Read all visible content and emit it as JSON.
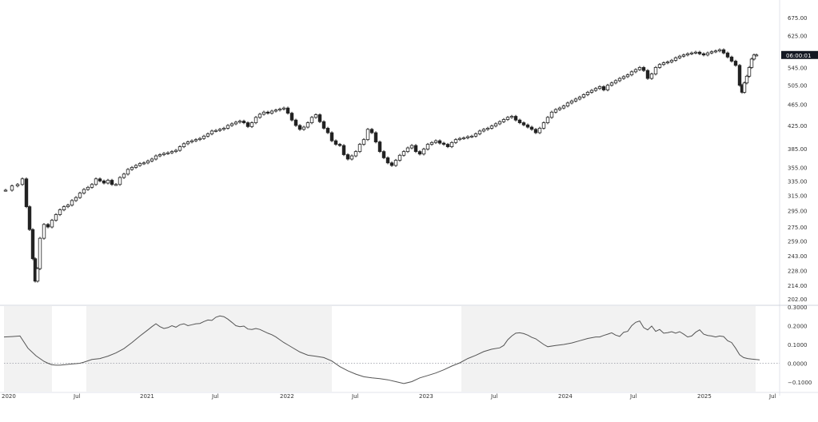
{
  "chart_data": [
    {
      "type": "candlestick",
      "title": "",
      "xlabel": "",
      "ylabel": "",
      "scale": "log",
      "ylim": [
        202,
        675
      ],
      "price_ticks": [
        "675.00",
        "625.00",
        "545.00",
        "505.00",
        "465.00",
        "425.00",
        "385.00",
        "355.00",
        "335.00",
        "315.00",
        "295.00",
        "275.00",
        "259.00",
        "243.00",
        "228.00",
        "214.00",
        "202.00"
      ],
      "last_price_marker": "06:00:01",
      "grid": false,
      "weekly_close_approx": {
        "dates": [
          "2020-01",
          "2020-02",
          "2020-03",
          "2020-04",
          "2020-05",
          "2020-06",
          "2020-07",
          "2020-08",
          "2020-09",
          "2020-10",
          "2020-11",
          "2020-12",
          "2021-01",
          "2021-02",
          "2021-03",
          "2021-04",
          "2021-05",
          "2021-06",
          "2021-07",
          "2021-08",
          "2021-09",
          "2021-10",
          "2021-11",
          "2021-12",
          "2022-01",
          "2022-02",
          "2022-03",
          "2022-04",
          "2022-05",
          "2022-06",
          "2022-07",
          "2022-08",
          "2022-09",
          "2022-10",
          "2022-11",
          "2022-12",
          "2023-01",
          "2023-02",
          "2023-03",
          "2023-04",
          "2023-05",
          "2023-06",
          "2023-07",
          "2023-08",
          "2023-09",
          "2023-10",
          "2023-11",
          "2023-12",
          "2024-01",
          "2024-02",
          "2024-03",
          "2024-04",
          "2024-05",
          "2024-06",
          "2024-07",
          "2024-08",
          "2024-09",
          "2024-10",
          "2024-11",
          "2024-12",
          "2025-01",
          "2025-02",
          "2025-03",
          "2025-04",
          "2025-05",
          "2025-06"
        ],
        "values": [
          322,
          335,
          255,
          285,
          300,
          305,
          322,
          345,
          335,
          330,
          360,
          372,
          375,
          385,
          395,
          415,
          418,
          428,
          435,
          450,
          440,
          458,
          465,
          475,
          440,
          430,
          450,
          420,
          400,
          378,
          410,
          425,
          360,
          385,
          400,
          385,
          400,
          400,
          395,
          410,
          418,
          438,
          455,
          450,
          430,
          415,
          455,
          475,
          485,
          505,
          520,
          505,
          525,
          545,
          548,
          560,
          570,
          575,
          595,
          590,
          600,
          595,
          560,
          525,
          585,
          598
        ]
      }
    },
    {
      "type": "line",
      "title": "",
      "ylim": [
        -0.14,
        0.3
      ],
      "y_ticks": [
        "0.3000",
        "0.2000",
        "0.1000",
        "0.0000",
        "−0.1000"
      ],
      "x_tick_labels": [
        "2020",
        "Jul",
        "2021",
        "Jul",
        "2022",
        "Jul",
        "2023",
        "Jul",
        "2024",
        "Jul",
        "2025",
        "Jul"
      ],
      "zero_line": "dotted",
      "shaded_bands": "light gray where indicator declining",
      "x": [
        0,
        10,
        20,
        30,
        40,
        50,
        55,
        60,
        65,
        70,
        75,
        80,
        85,
        90,
        95,
        100,
        110,
        120,
        130,
        140,
        150,
        160,
        170,
        180,
        185,
        190,
        195,
        200,
        205,
        210,
        215,
        220,
        225,
        230,
        235,
        240,
        245,
        250,
        255,
        260,
        265,
        270,
        275,
        280,
        285,
        290,
        295,
        300,
        305,
        310,
        315,
        320,
        325,
        330,
        335,
        340,
        345,
        350,
        355,
        360,
        370,
        380,
        390,
        400,
        410,
        420,
        430,
        440,
        450,
        460,
        470,
        480,
        490,
        500,
        510,
        520,
        530,
        540,
        550,
        560,
        570,
        580,
        590,
        600,
        610,
        620,
        625,
        630,
        635,
        640,
        645,
        650,
        655,
        660,
        665,
        670,
        675,
        680,
        690,
        700,
        710,
        720,
        730,
        740,
        745,
        750,
        755,
        760,
        765,
        770,
        775,
        780,
        785,
        790,
        795,
        800,
        805,
        810,
        815,
        820,
        825,
        830,
        835,
        840,
        845,
        850,
        855,
        860,
        865,
        870,
        875,
        880,
        885,
        890,
        895,
        900,
        905,
        910,
        915,
        920,
        925,
        930,
        935,
        940,
        945
      ],
      "values": [
        0.14,
        0.142,
        0.145,
        0.08,
        0.04,
        0.01,
        0.0,
        -0.008,
        -0.01,
        -0.01,
        -0.008,
        -0.006,
        -0.004,
        -0.002,
        0.0,
        0.006,
        0.02,
        0.025,
        0.038,
        0.055,
        0.078,
        0.11,
        0.145,
        0.178,
        0.195,
        0.21,
        0.195,
        0.185,
        0.19,
        0.2,
        0.192,
        0.205,
        0.21,
        0.2,
        0.205,
        0.21,
        0.212,
        0.222,
        0.23,
        0.228,
        0.245,
        0.252,
        0.248,
        0.235,
        0.218,
        0.2,
        0.195,
        0.198,
        0.182,
        0.18,
        0.185,
        0.18,
        0.17,
        0.16,
        0.152,
        0.14,
        0.125,
        0.11,
        0.098,
        0.085,
        0.06,
        0.043,
        0.037,
        0.03,
        0.012,
        -0.018,
        -0.04,
        -0.058,
        -0.072,
        -0.078,
        -0.082,
        -0.088,
        -0.098,
        -0.108,
        -0.098,
        -0.078,
        -0.065,
        -0.052,
        -0.035,
        -0.015,
        0.002,
        0.025,
        0.042,
        0.062,
        0.075,
        0.082,
        0.095,
        0.125,
        0.145,
        0.16,
        0.162,
        0.158,
        0.15,
        0.138,
        0.13,
        0.115,
        0.1,
        0.088,
        0.095,
        0.1,
        0.108,
        0.12,
        0.132,
        0.14,
        0.14,
        0.148,
        0.155,
        0.162,
        0.15,
        0.143,
        0.165,
        0.17,
        0.2,
        0.218,
        0.225,
        0.19,
        0.178,
        0.198,
        0.17,
        0.18,
        0.16,
        0.163,
        0.168,
        0.16,
        0.168,
        0.155,
        0.14,
        0.145,
        0.165,
        0.178,
        0.155,
        0.148,
        0.145,
        0.14,
        0.145,
        0.142,
        0.12,
        0.11,
        0.08,
        0.045,
        0.03,
        0.025,
        0.022,
        0.02,
        0.018
      ]
    }
  ]
}
